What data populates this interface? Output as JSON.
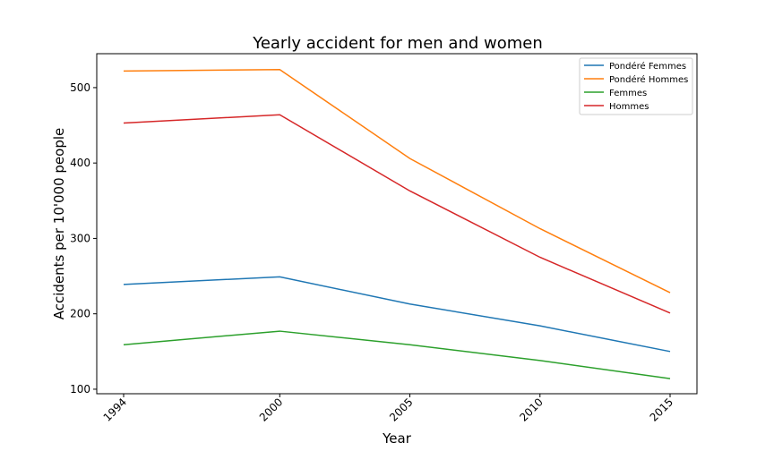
{
  "chart_data": {
    "type": "line",
    "title": "Yearly accident for men and women",
    "xlabel": "Year",
    "ylabel": "Accidents per 10'000 people",
    "x": [
      1994,
      2000,
      2005,
      2010,
      2015
    ],
    "x_tick_labels": [
      "1994",
      "2000",
      "2005",
      "2010",
      "2015"
    ],
    "y_ticks": [
      100,
      200,
      300,
      400,
      500
    ],
    "ylim": [
      94,
      545
    ],
    "grid": false,
    "legend_position": "top-right",
    "series": [
      {
        "name": "Pondéré Femmes",
        "color": "#1f77b4",
        "values": [
          239,
          249,
          213,
          184,
          150
        ]
      },
      {
        "name": "Pondéré Hommes",
        "color": "#ff7f0e",
        "values": [
          522,
          524,
          406,
          313,
          228
        ]
      },
      {
        "name": "Femmes",
        "color": "#2ca02c",
        "values": [
          159,
          177,
          159,
          138,
          114
        ]
      },
      {
        "name": "Hommes",
        "color": "#d62728",
        "values": [
          453,
          464,
          363,
          275,
          201
        ]
      }
    ]
  }
}
